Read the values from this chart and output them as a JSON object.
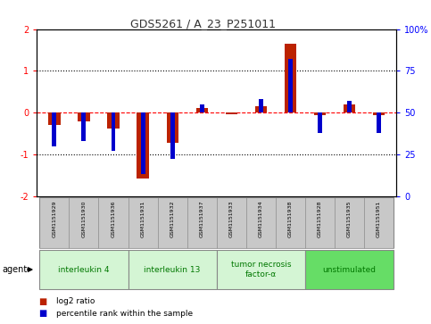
{
  "title": "GDS5261 / A_23_P251011",
  "samples": [
    "GSM1151929",
    "GSM1151930",
    "GSM1151936",
    "GSM1151931",
    "GSM1151932",
    "GSM1151937",
    "GSM1151933",
    "GSM1151934",
    "GSM1151938",
    "GSM1151928",
    "GSM1151935",
    "GSM1151951"
  ],
  "log2_ratio": [
    -0.3,
    -0.22,
    -0.38,
    -1.58,
    -0.72,
    0.1,
    -0.04,
    0.16,
    1.65,
    -0.06,
    0.2,
    -0.06
  ],
  "percentile_rank": [
    30,
    33,
    27,
    13,
    22,
    55,
    50,
    58,
    82,
    38,
    57,
    38
  ],
  "agents": [
    {
      "label": "interleukin 4",
      "start": 0,
      "end": 3,
      "color": "#d4f5d4"
    },
    {
      "label": "interleukin 13",
      "start": 3,
      "end": 6,
      "color": "#d4f5d4"
    },
    {
      "label": "tumor necrosis\nfactor-α",
      "start": 6,
      "end": 9,
      "color": "#d4f5d4"
    },
    {
      "label": "unstimulated",
      "start": 9,
      "end": 12,
      "color": "#66dd66"
    }
  ],
  "bar_color_red": "#bb2200",
  "bar_color_blue": "#0000cc",
  "ylim_left": [
    -2,
    2
  ],
  "ylim_right": [
    0,
    100
  ],
  "yticks_left": [
    -2,
    -1,
    0,
    1,
    2
  ],
  "yticks_right": [
    0,
    25,
    50,
    75,
    100
  ],
  "ytick_labels_right": [
    "0",
    "25",
    "50",
    "75",
    "100%"
  ],
  "ytick_labels_left": [
    "-2",
    "-1",
    "0",
    "1",
    "2"
  ],
  "plot_bg": "#ffffff",
  "sample_box_bg": "#c8c8c8",
  "sample_box_edge": "#999999",
  "agent_box_edge": "#888888",
  "agent_text_color": "#007700",
  "red_bar_width": 0.4,
  "blue_bar_width": 0.15
}
